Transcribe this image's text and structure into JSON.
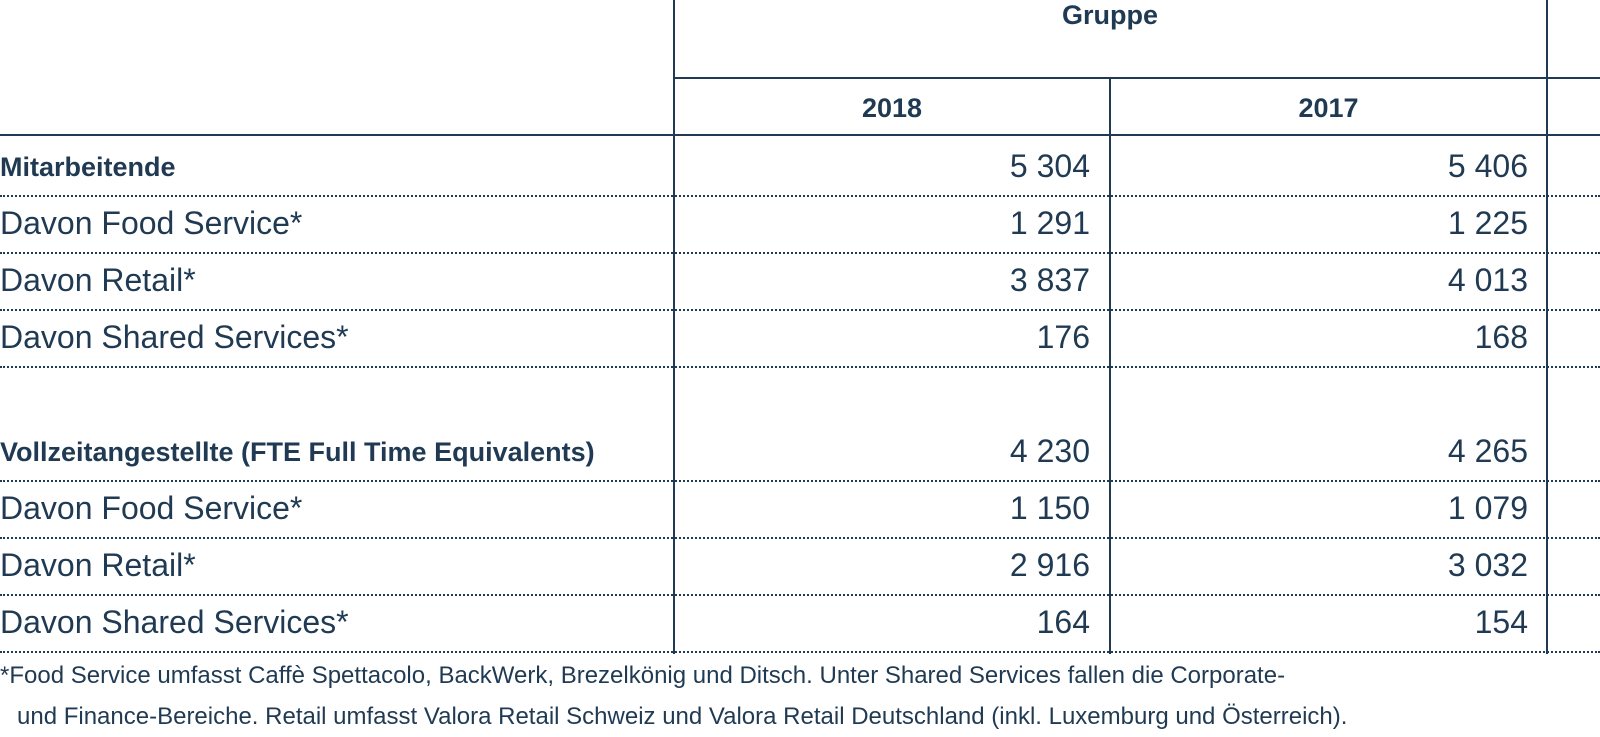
{
  "header": {
    "group_label": "Gruppe",
    "years": [
      "2018",
      "2017"
    ]
  },
  "rows": [
    {
      "label": "Mitarbeitende",
      "bold": true,
      "v2018": "5 304",
      "v2017": "5 406"
    },
    {
      "label": "Davon Food Service*",
      "bold": false,
      "v2018": "1 291",
      "v2017": "1 225"
    },
    {
      "label": "Davon Retail*",
      "bold": false,
      "v2018": "3 837",
      "v2017": "4 013"
    },
    {
      "label": "Davon Shared Services*",
      "bold": false,
      "v2018": "176",
      "v2017": "168"
    },
    {
      "label": "Vollzeitangestellte (FTE Full Time Equivalents)",
      "bold": true,
      "v2018": "4 230",
      "v2017": "4 265"
    },
    {
      "label": "Davon Food Service*",
      "bold": false,
      "v2018": "1 150",
      "v2017": "1 079"
    },
    {
      "label": "Davon Retail*",
      "bold": false,
      "v2018": "2 916",
      "v2017": "3 032"
    },
    {
      "label": "Davon Shared Services*",
      "bold": false,
      "v2018": "164",
      "v2017": "154"
    }
  ],
  "footnote": {
    "line1": "*Food Service umfasst Caffè Spettacolo, BackWerk, Brezelkönig und Ditsch. Unter Shared Services fallen die Corporate-",
    "line2": "und Finance-Bereiche. Retail umfasst Valora Retail Schweiz und Valora Retail Deutschland (inkl. Luxemburg und Österreich)."
  }
}
